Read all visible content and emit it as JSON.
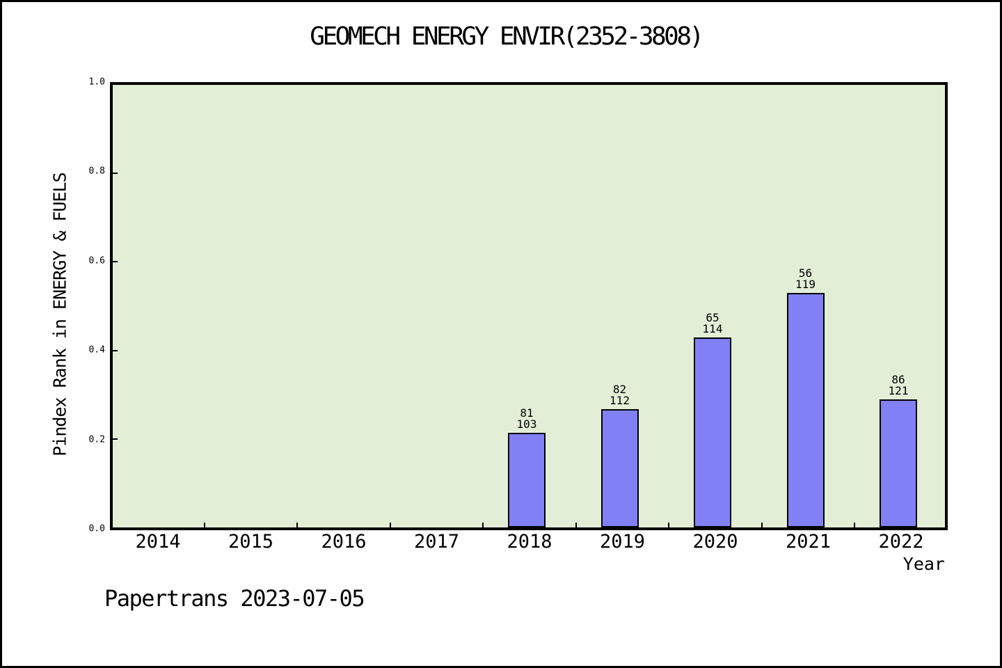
{
  "title": "GEOMECH ENERGY ENVIR(2352-3808)",
  "footer": "Papertrans 2023-07-05",
  "colors": {
    "plot_background": "#e3eed7",
    "bar_fill": "#8181f5",
    "bar_edge": "#000000",
    "frame": "#000000",
    "page_background": "#ffffff",
    "text": "#000000"
  },
  "chart_data": {
    "type": "bar",
    "title": "GEOMECH ENERGY ENVIR(2352-3808)",
    "xlabel": "Year",
    "ylabel": "Pindex Rank in ENERGY & FUELS",
    "categories": [
      "2014",
      "2015",
      "2016",
      "2017",
      "2018",
      "2019",
      "2020",
      "2021",
      "2022"
    ],
    "series": [
      {
        "name": "Pindex Rank in ENERGY & FUELS",
        "values": [
          null,
          null,
          null,
          null,
          0.214,
          0.268,
          0.43,
          0.529,
          0.289
        ]
      }
    ],
    "bars": [
      {
        "year": "2018",
        "rank": "81",
        "total": "103",
        "value": 0.2136
      },
      {
        "year": "2019",
        "rank": "82",
        "total": "112",
        "value": 0.2679
      },
      {
        "year": "2020",
        "rank": "65",
        "total": "114",
        "value": 0.4298
      },
      {
        "year": "2021",
        "rank": "56",
        "total": "119",
        "value": 0.5294
      },
      {
        "year": "2022",
        "rank": "86",
        "total": "121",
        "value": 0.2893
      }
    ],
    "ylim": [
      0.0,
      1.0
    ],
    "yticks": [
      "0.0",
      "0.2",
      "0.4",
      "0.6",
      "0.8",
      "1.0"
    ],
    "grid": false,
    "legend": null,
    "annotation_format": "rank over total shown above each bar"
  }
}
